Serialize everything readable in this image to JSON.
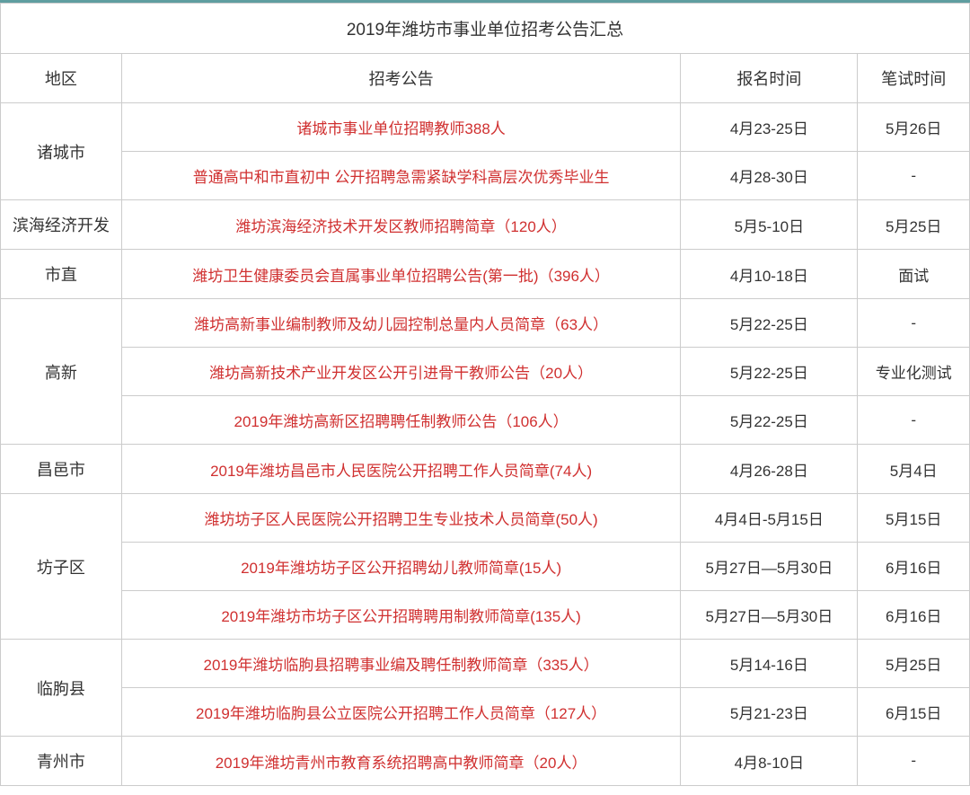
{
  "title": "2019年潍坊市事业单位招考公告汇总",
  "headers": {
    "region": "地区",
    "announcement": "招考公告",
    "signup_time": "报名时间",
    "exam_time": "笔试时间"
  },
  "colors": {
    "border_top": "#5f9ea0",
    "cell_border": "#cccccc",
    "link_color": "#d03030",
    "text_color": "#333333",
    "background": "#ffffff"
  },
  "regions": [
    {
      "name": "诸城市",
      "rows": [
        {
          "announcement": "诸城市事业单位招聘教师388人",
          "signup": "4月23-25日",
          "exam": "5月26日"
        },
        {
          "announcement": "普通高中和市直初中 公开招聘急需紧缺学科高层次优秀毕业生",
          "signup": "4月28-30日",
          "exam": "-"
        }
      ]
    },
    {
      "name": "滨海经济开发",
      "rows": [
        {
          "announcement": "潍坊滨海经济技术开发区教师招聘简章（120人）",
          "signup": "5月5-10日",
          "exam": "5月25日"
        }
      ]
    },
    {
      "name": "市直",
      "rows": [
        {
          "announcement": "潍坊卫生健康委员会直属事业单位招聘公告(第一批)（396人）",
          "signup": "4月10-18日",
          "exam": "面试"
        }
      ]
    },
    {
      "name": "高新",
      "rows": [
        {
          "announcement": "潍坊高新事业编制教师及幼儿园控制总量内人员简章（63人）",
          "signup": "5月22-25日",
          "exam": "-"
        },
        {
          "announcement": "潍坊高新技术产业开发区公开引进骨干教师公告（20人）",
          "signup": "5月22-25日",
          "exam": "专业化测试"
        },
        {
          "announcement": "2019年潍坊高新区招聘聘任制教师公告（106人）",
          "signup": "5月22-25日",
          "exam": "-"
        }
      ]
    },
    {
      "name": "昌邑市",
      "rows": [
        {
          "announcement": "2019年潍坊昌邑市人民医院公开招聘工作人员简章(74人)",
          "signup": "4月26-28日",
          "exam": "5月4日"
        }
      ]
    },
    {
      "name": "坊子区",
      "rows": [
        {
          "announcement": "潍坊坊子区人民医院公开招聘卫生专业技术人员简章(50人)",
          "signup": "4月4日-5月15日",
          "exam": "5月15日"
        },
        {
          "announcement": "2019年潍坊坊子区公开招聘幼儿教师简章(15人)",
          "signup": "5月27日—5月30日",
          "exam": "6月16日"
        },
        {
          "announcement": "2019年潍坊市坊子区公开招聘聘用制教师简章(135人)",
          "signup": "5月27日—5月30日",
          "exam": "6月16日"
        }
      ]
    },
    {
      "name": "临朐县",
      "rows": [
        {
          "announcement": "2019年潍坊临朐县招聘事业编及聘任制教师简章（335人）",
          "signup": "5月14-16日",
          "exam": "5月25日"
        },
        {
          "announcement": "2019年潍坊临朐县公立医院公开招聘工作人员简章（127人）",
          "signup": "5月21-23日",
          "exam": "6月15日"
        }
      ]
    },
    {
      "name": "青州市",
      "rows": [
        {
          "announcement": "2019年潍坊青州市教育系统招聘高中教师简章（20人）",
          "signup": "4月8-10日",
          "exam": "-"
        }
      ]
    }
  ]
}
